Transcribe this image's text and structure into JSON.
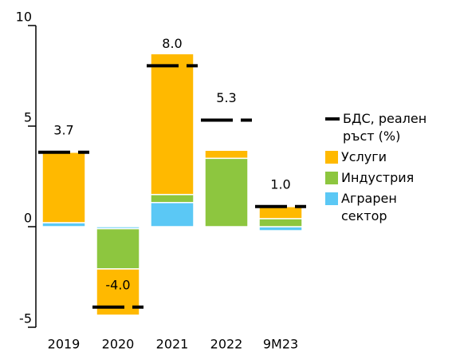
{
  "chart_data": {
    "type": "bar",
    "categories": [
      "2019",
      "2020",
      "2021",
      "2022",
      "9M23"
    ],
    "series": [
      {
        "name": "Аграрен сектор",
        "color": "#5bc8f5",
        "values": [
          0.2,
          -0.1,
          1.2,
          0,
          -0.2
        ]
      },
      {
        "name": "Индустрия",
        "color": "#8dc63f",
        "values": [
          0.0,
          -2.0,
          0.4,
          3.4,
          0.4
        ]
      },
      {
        "name": "Услуги",
        "color": "#ffb900",
        "values": [
          3.5,
          -2.3,
          7.0,
          0.4,
          0.6
        ]
      }
    ],
    "marker": {
      "name": "БДС, реален ръст (%)",
      "color": "#000000",
      "values": [
        3.7,
        -4.0,
        8.0,
        5.3,
        1.0
      ],
      "value_labels": [
        "3.7",
        "-4.0",
        "8.0",
        "5.3",
        "1.0"
      ]
    },
    "ylim": [
      -5,
      10
    ],
    "yticks": [
      -5,
      0,
      5,
      10
    ]
  }
}
